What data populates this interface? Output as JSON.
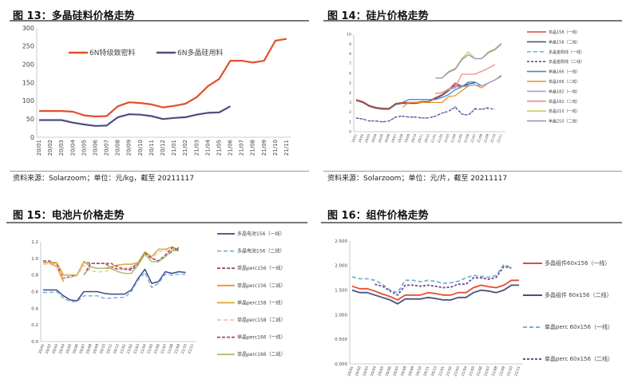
{
  "figures": [
    {
      "title": "图 13：多晶硅料价格走势",
      "source": "资料来源：Solarzoom；单位：元/kg，截至 20211117"
    },
    {
      "title": "图 14：硅片价格走势",
      "source": "资料来源：Solarzoom；单位：元/片，截至 20211117"
    },
    {
      "title": "图 15：电池片价格走势"
    },
    {
      "title": "图 16：组件价格走势"
    }
  ],
  "chart_data": [
    {
      "type": "line",
      "title": "多晶硅料价格走势",
      "ylim": [
        0,
        300
      ],
      "yticks": [
        "0",
        "50",
        "100",
        "150",
        "200",
        "250",
        "300"
      ],
      "categories": [
        "20/01",
        "20/02",
        "20/03",
        "20/04",
        "20/05",
        "20/06",
        "20/07",
        "20/08",
        "20/09",
        "20/10",
        "20/11",
        "20/12",
        "21/01",
        "21/02",
        "21/03",
        "21/04",
        "21/05",
        "21/06",
        "21/07",
        "21/08",
        "21/09",
        "21/10",
        "21/11"
      ],
      "legend_position": "top-inside",
      "series": [
        {
          "name": "6N特级致密料",
          "color": "#e0502a",
          "dash": "",
          "values": [
            72,
            72,
            72,
            70,
            60,
            57,
            58,
            85,
            96,
            94,
            90,
            82,
            86,
            92,
            110,
            140,
            160,
            210,
            210,
            205,
            210,
            265,
            270
          ]
        },
        {
          "name": "6N多晶硅用料",
          "color": "#4a4f7f",
          "dash": "",
          "values": [
            47,
            47,
            47,
            40,
            35,
            31,
            32,
            55,
            63,
            62,
            58,
            50,
            53,
            55,
            62,
            67,
            68,
            85,
            null,
            null,
            null,
            null,
            null
          ]
        }
      ]
    },
    {
      "type": "line",
      "title": "硅片价格走势",
      "ylim": [
        0,
        10
      ],
      "yticks": [
        "0",
        "1",
        "2",
        "3",
        "4",
        "5",
        "6",
        "7",
        "8",
        "9",
        "10"
      ],
      "categories": [
        "20/01",
        "20/02",
        "20/03",
        "20/04",
        "20/05",
        "20/06",
        "20/07",
        "20/08",
        "20/09",
        "20/10",
        "20/11",
        "20/12",
        "21/01",
        "21/02",
        "21/03",
        "21/04",
        "21/05",
        "21/06",
        "21/07",
        "21/08",
        "21/09",
        "21/10",
        "21/11"
      ],
      "legend_position": "right",
      "series": [
        {
          "name": "单晶158（一线）",
          "color": "#d94a3a",
          "dash": "",
          "values": [
            3.3,
            3.1,
            2.7,
            2.5,
            2.4,
            2.4,
            2.9,
            3.0,
            3.0,
            3.0,
            3.1,
            3.1,
            3.5,
            3.8,
            4.3,
            5.0,
            4.7,
            4.8,
            null,
            null,
            null,
            null,
            null
          ]
        },
        {
          "name": "单晶158（二线）",
          "color": "#555a6a",
          "dash": "",
          "values": [
            3.2,
            3.0,
            2.6,
            2.4,
            2.3,
            2.3,
            2.8,
            2.9,
            2.9,
            2.9,
            3.0,
            3.1,
            3.4,
            3.7,
            4.2,
            4.8,
            4.6,
            4.9,
            5.0,
            null,
            null,
            null,
            null
          ]
        },
        {
          "name": "多晶金刚线（一线）",
          "color": "#7ab0d8",
          "dash": "5,3",
          "values": [
            1.4,
            1.3,
            1.1,
            1.1,
            1.0,
            1.1,
            1.5,
            1.6,
            1.5,
            1.5,
            1.4,
            1.4,
            1.6,
            1.9,
            2.1,
            2.6,
            1.8,
            1.7,
            2.4,
            2.3,
            2.5,
            null,
            null
          ]
        },
        {
          "name": "多晶金刚线（二线）",
          "color": "#5a4f8f",
          "dash": "3,2",
          "values": [
            1.4,
            1.3,
            1.1,
            1.1,
            1.0,
            1.1,
            1.5,
            1.6,
            1.5,
            1.5,
            1.4,
            1.4,
            1.6,
            1.9,
            2.1,
            2.5,
            1.8,
            1.7,
            2.3,
            2.3,
            2.4,
            2.3,
            null
          ]
        },
        {
          "name": "单晶166（一线）",
          "color": "#3c8fd0",
          "dash": "",
          "values": [
            null,
            null,
            null,
            null,
            null,
            null,
            null,
            3.0,
            3.3,
            3.3,
            3.3,
            3.3,
            3.3,
            3.5,
            3.8,
            4.3,
            4.6,
            5.1,
            5.1,
            4.7,
            5.0,
            5.3,
            5.7
          ]
        },
        {
          "name": "单晶166（二线）",
          "color": "#f0902a",
          "dash": "",
          "values": [
            null,
            null,
            null,
            null,
            null,
            null,
            null,
            2.5,
            3.0,
            3.0,
            3.0,
            3.0,
            3.0,
            3.0,
            3.6,
            3.7,
            4.2,
            4.7,
            4.8,
            4.5,
            5.0,
            5.3,
            5.8
          ]
        },
        {
          "name": "单晶182（一线）",
          "color": "#a99fd0",
          "dash": "",
          "values": [
            null,
            null,
            null,
            null,
            null,
            null,
            null,
            null,
            null,
            null,
            null,
            null,
            3.9,
            4.0,
            4.4,
            4.6,
            4.6,
            4.7,
            4.8,
            4.7,
            5.0,
            5.3,
            5.7
          ]
        },
        {
          "name": "单晶182（二线）",
          "color": "#f08a8a",
          "dash": "",
          "values": [
            null,
            null,
            null,
            null,
            null,
            null,
            null,
            null,
            null,
            null,
            null,
            null,
            3.9,
            4.0,
            4.3,
            4.5,
            5.9,
            5.9,
            5.9,
            6.2,
            6.5,
            6.9,
            null
          ]
        },
        {
          "name": "单晶210（一线）",
          "color": "#c8d060",
          "dash": "",
          "values": [
            null,
            null,
            null,
            null,
            null,
            null,
            null,
            null,
            null,
            null,
            null,
            null,
            5.5,
            5.5,
            6.2,
            6.5,
            7.5,
            8.2,
            7.5,
            7.5,
            8.2,
            8.5,
            9.1
          ]
        },
        {
          "name": "单晶210（二线）",
          "color": "#a090b0",
          "dash": "",
          "values": [
            null,
            null,
            null,
            null,
            null,
            null,
            null,
            null,
            null,
            null,
            null,
            null,
            5.5,
            5.5,
            6.1,
            6.4,
            7.4,
            7.9,
            7.5,
            7.5,
            8.1,
            8.4,
            9.0
          ]
        }
      ]
    },
    {
      "type": "line",
      "title": "电池片价格走势",
      "ylim": [
        0,
        1.2
      ],
      "yticks": [
        "0.0",
        "0.2",
        "0.4",
        "0.6",
        "0.8",
        "1.0",
        "1.2"
      ],
      "categories": [
        "20/01",
        "20/02",
        "20/03",
        "20/04",
        "20/05",
        "20/06",
        "20/07",
        "20/08",
        "20/09",
        "20/10",
        "20/11",
        "20/12",
        "21/01",
        "21/02",
        "21/03",
        "21/04",
        "21/05",
        "21/06",
        "21/07",
        "21/08",
        "21/09",
        "21/10",
        "21/11"
      ],
      "legend_position": "right",
      "series": [
        {
          "name": "多晶电池156（一线）",
          "color": "#3c4a8a",
          "dash": "",
          "values": [
            0.62,
            0.62,
            0.62,
            0.55,
            0.5,
            0.49,
            0.6,
            0.6,
            0.6,
            0.58,
            0.57,
            0.57,
            0.57,
            0.62,
            0.76,
            0.87,
            0.7,
            0.72,
            0.84,
            0.82,
            0.84,
            0.83,
            null
          ]
        },
        {
          "name": "多晶电池156（二线）",
          "color": "#7ab0d8",
          "dash": "5,3",
          "values": [
            0.59,
            0.59,
            0.6,
            0.52,
            0.48,
            0.48,
            0.55,
            0.55,
            0.55,
            0.52,
            0.52,
            0.53,
            0.53,
            0.6,
            0.74,
            0.83,
            0.65,
            0.7,
            0.81,
            0.8,
            0.81,
            0.81,
            null
          ]
        },
        {
          "name": "单晶perc156（一线）",
          "color": "#9a4a7a",
          "dash": "4,2",
          "values": [
            0.97,
            0.97,
            0.93,
            0.76,
            0.78,
            0.8,
            0.96,
            0.94,
            0.94,
            0.94,
            0.9,
            0.87,
            0.87,
            0.88,
            0.95,
            1.07,
            1.0,
            0.97,
            1.03,
            1.08,
            1.13,
            null,
            null
          ]
        },
        {
          "name": "单晶perc156（二线）",
          "color": "#f0902a",
          "dash": "",
          "values": [
            0.95,
            0.95,
            0.9,
            0.72,
            null,
            null,
            null,
            null,
            null,
            null,
            null,
            null,
            null,
            null,
            null,
            null,
            null,
            null,
            null,
            null,
            null,
            null,
            null
          ]
        },
        {
          "name": "单晶perc158（一线）",
          "color": "#d8a830",
          "dash": "",
          "values": [
            0.95,
            0.95,
            0.95,
            0.8,
            0.8,
            0.8,
            0.96,
            0.9,
            0.88,
            0.88,
            0.9,
            0.92,
            0.93,
            0.93,
            0.95,
            1.08,
            1.02,
            1.11,
            1.11,
            1.14,
            1.1,
            null,
            null
          ]
        },
        {
          "name": "单晶perc158（二线）",
          "color": "#f8c0b0",
          "dash": "5,3",
          "values": [
            0.93,
            0.93,
            0.9,
            0.77,
            0.77,
            0.79,
            0.92,
            0.85,
            0.84,
            0.84,
            0.87,
            0.87,
            0.88,
            0.9,
            0.93,
            1.05,
            1.0,
            1.08,
            1.09,
            1.12,
            1.09,
            null,
            null
          ]
        },
        {
          "name": "单晶perc166（一线）",
          "color": "#a04878",
          "dash": "4,2",
          "values": [
            null,
            null,
            null,
            null,
            null,
            null,
            0.8,
            0.94,
            0.94,
            0.94,
            0.94,
            0.9,
            0.87,
            0.86,
            0.93,
            1.06,
            1.0,
            0.97,
            1.04,
            1.13,
            1.1,
            null,
            null
          ]
        },
        {
          "name": "单晶perc166（二线）",
          "color": "#a8c070",
          "dash": "",
          "values": [
            null,
            null,
            null,
            null,
            null,
            null,
            0.8,
            0.9,
            0.88,
            0.88,
            0.88,
            0.84,
            0.82,
            0.82,
            0.92,
            1.05,
            0.96,
            0.96,
            1.02,
            1.1,
            1.09,
            null,
            null
          ]
        }
      ]
    },
    {
      "type": "line",
      "title": "组件价格走势",
      "ylim": [
        0,
        2.5
      ],
      "yticks": [
        "0.000",
        "0.500",
        "1.000",
        "1.500",
        "2.000",
        "2.500"
      ],
      "categories": [
        "20/01",
        "20/02",
        "20/03",
        "20/04",
        "20/05",
        "20/06",
        "20/07",
        "20/08",
        "20/09",
        "20/10",
        "20/11",
        "20/12",
        "21/01",
        "21/02",
        "21/03",
        "21/04",
        "21/05",
        "21/06",
        "21/07",
        "21/08",
        "21/09",
        "21/10",
        "21/11"
      ],
      "legend_position": "right",
      "series": [
        {
          "name": "多晶组件60x156（一线）",
          "color": "#e0502a",
          "dash": "",
          "values": [
            1.58,
            1.53,
            1.53,
            1.48,
            1.42,
            1.37,
            1.3,
            1.4,
            1.4,
            1.4,
            1.45,
            1.43,
            1.4,
            1.4,
            1.45,
            1.45,
            1.55,
            1.6,
            1.57,
            1.55,
            1.6,
            1.7,
            1.7
          ]
        },
        {
          "name": "多晶组件 60x156（二线）",
          "color": "#4a4f7f",
          "dash": "",
          "values": [
            1.5,
            1.45,
            1.45,
            1.4,
            1.35,
            1.3,
            1.22,
            1.32,
            1.32,
            1.32,
            1.35,
            1.33,
            1.3,
            1.3,
            1.35,
            1.35,
            1.45,
            1.5,
            1.48,
            1.45,
            1.5,
            1.6,
            1.6
          ]
        },
        {
          "name": "单晶perc 60x156（一线）",
          "color": "#7ab0d8",
          "dash": "5,3",
          "values": [
            1.77,
            1.73,
            1.73,
            1.7,
            1.62,
            1.5,
            1.45,
            1.7,
            1.7,
            1.67,
            1.7,
            1.68,
            1.64,
            1.65,
            1.68,
            1.75,
            1.8,
            1.78,
            1.76,
            1.8,
            2.02,
            1.96,
            null
          ]
        },
        {
          "name": "单晶perc 60x156（二线）",
          "color": "#6a4f8f",
          "dash": "3,2",
          "values": [
            null,
            null,
            null,
            1.62,
            1.58,
            1.48,
            1.4,
            1.6,
            1.6,
            1.58,
            1.6,
            1.58,
            1.55,
            1.56,
            1.62,
            1.62,
            1.75,
            1.75,
            1.72,
            1.76,
            1.98,
            1.95,
            null
          ]
        }
      ]
    }
  ]
}
